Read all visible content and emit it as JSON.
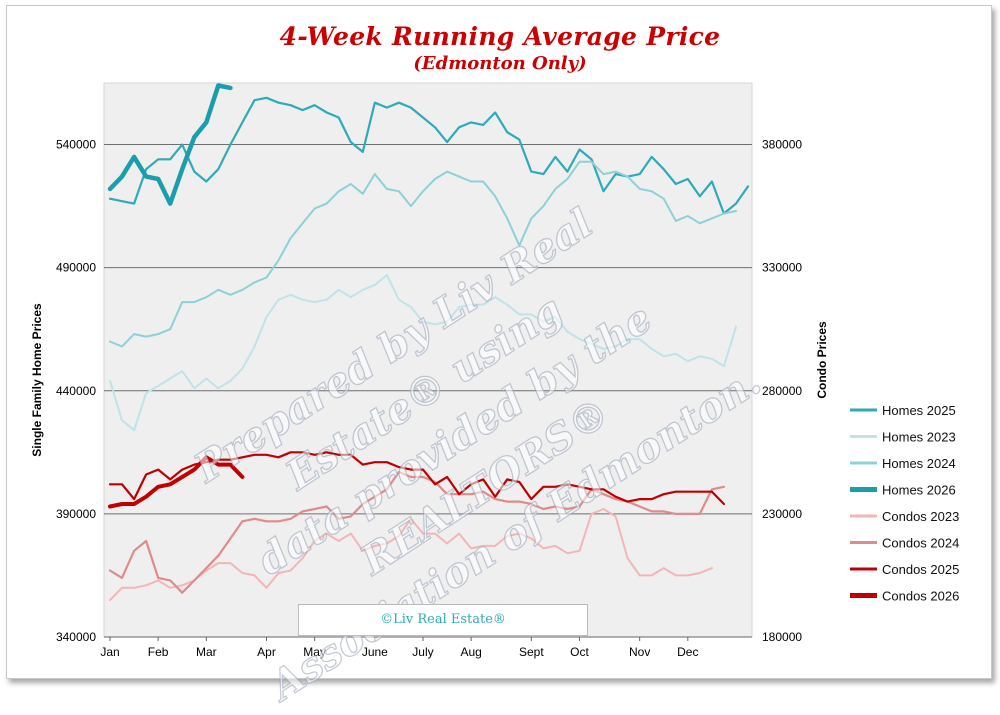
{
  "title": "4-Week Running Average Price",
  "subtitle": "(Edmonton Only)",
  "watermark_lines": [
    "Prepared by Liv Real",
    "Estate® using",
    "data provided by the",
    "REALTORS®",
    "Association of Edmonton."
  ],
  "copyright": "©Liv Real Estate®",
  "colors": {
    "plot_background": "#efefef",
    "homes_2025": "#2eaab8",
    "homes_2023": "#bfe3e8",
    "homes_2024": "#8fd0d8",
    "homes_2026": "#1b9eac",
    "condos_2023": "#f2b6b6",
    "condos_2024": "#df8b8b",
    "condos_2025": "#c00000",
    "condos_2026": "#c00000",
    "title": "#cc0000"
  },
  "chart_data": {
    "type": "line",
    "title": "4-Week Running Average Price",
    "subtitle": "(Edmonton Only)",
    "ylabel_left": "Single Family Home Prices",
    "ylabel_right": "Condo Prices",
    "ylim_left": [
      340000,
      565000
    ],
    "ylim_right": [
      180000,
      405000
    ],
    "yticks_left": [
      "540000",
      "490000",
      "440000",
      "390000",
      "340000"
    ],
    "yticks_right": [
      "380000",
      "330000",
      "280000",
      "230000",
      "180000"
    ],
    "ytick_values_left": [
      540000,
      490000,
      440000,
      390000,
      340000
    ],
    "ytick_values_right": [
      380000,
      330000,
      280000,
      230000,
      180000
    ],
    "x_week_range": [
      0,
      53
    ],
    "months": [
      {
        "label": "Jan",
        "week": 0
      },
      {
        "label": "Feb",
        "week": 4
      },
      {
        "label": "Mar",
        "week": 8
      },
      {
        "label": "Apr",
        "week": 13
      },
      {
        "label": "May",
        "week": 17
      },
      {
        "label": "June",
        "week": 22
      },
      {
        "label": "July",
        "week": 26
      },
      {
        "label": "Aug",
        "week": 30
      },
      {
        "label": "Sept",
        "week": 35
      },
      {
        "label": "Oct",
        "week": 39
      },
      {
        "label": "Nov",
        "week": 44
      },
      {
        "label": "Dec",
        "week": 48
      }
    ],
    "grid": true,
    "legend_position": "right",
    "series": [
      {
        "name": "Homes 2025",
        "axis": "left",
        "color": "#2eaab8",
        "width": 2.2,
        "values": [
          518000,
          517000,
          516000,
          530000,
          534000,
          534000,
          540000,
          529000,
          525000,
          530000,
          540000,
          549000,
          558000,
          559000,
          557000,
          556000,
          554000,
          556000,
          553000,
          551000,
          541000,
          537000,
          557000,
          555000,
          557000,
          555000,
          551000,
          547000,
          541000,
          547000,
          549000,
          548000,
          553000,
          545000,
          542000,
          529000,
          528000,
          535000,
          529000,
          538000,
          534000,
          521000,
          528000,
          527000,
          528000,
          535000,
          530000,
          524000,
          526000,
          519000,
          525000,
          512000,
          516000,
          523000
        ]
      },
      {
        "name": "Homes 2023",
        "axis": "left",
        "color": "#bfe3e8",
        "width": 2.0,
        "values": [
          444000,
          428000,
          424000,
          439000,
          442000,
          445000,
          448000,
          441000,
          445000,
          441000,
          444000,
          449000,
          458000,
          470000,
          477000,
          479000,
          477000,
          476000,
          477000,
          481000,
          478000,
          481000,
          483000,
          487000,
          477000,
          474000,
          468000,
          467000,
          468000,
          474000,
          475000,
          475000,
          478000,
          475000,
          471000,
          471000,
          468000,
          470000,
          464000,
          461000,
          459000,
          457000,
          458000,
          461000,
          461000,
          457000,
          454000,
          455000,
          452000,
          454000,
          453000,
          450000,
          466000
        ]
      },
      {
        "name": "Homes 2024",
        "axis": "left",
        "color": "#8fd0d8",
        "width": 2.0,
        "values": [
          460000,
          458000,
          463000,
          462000,
          463000,
          465000,
          476000,
          476000,
          478000,
          481000,
          479000,
          481000,
          484000,
          486000,
          493000,
          502000,
          508000,
          514000,
          516000,
          521000,
          524000,
          520000,
          528000,
          522000,
          521000,
          515000,
          521000,
          526000,
          529000,
          527000,
          525000,
          525000,
          519000,
          510000,
          499000,
          510000,
          515000,
          522000,
          526000,
          533000,
          533000,
          528000,
          529000,
          527000,
          522000,
          521000,
          518000,
          509000,
          511000,
          508000,
          510000,
          512000,
          513000
        ]
      },
      {
        "name": "Homes 2026",
        "axis": "left",
        "color": "#1b9eac",
        "width": 4.5,
        "values": [
          522000,
          527000,
          535000,
          527000,
          526000,
          516000,
          530000,
          543000,
          549000,
          564000,
          563000
        ]
      },
      {
        "name": "Condos 2023",
        "axis": "right",
        "color": "#f2b6b6",
        "width": 2.0,
        "values": [
          195000,
          200000,
          200000,
          201000,
          203000,
          200000,
          201000,
          203000,
          207000,
          210000,
          210000,
          206000,
          205000,
          200000,
          206000,
          207000,
          212000,
          219000,
          222000,
          219000,
          222000,
          215000,
          217000,
          218000,
          221000,
          228000,
          222000,
          222000,
          218000,
          222000,
          216000,
          217000,
          217000,
          221000,
          222000,
          220000,
          216000,
          217000,
          214000,
          215000,
          230000,
          232000,
          229000,
          212000,
          205000,
          205000,
          208000,
          205000,
          205000,
          206000,
          208000
        ]
      },
      {
        "name": "Condos 2024",
        "axis": "right",
        "color": "#df8b8b",
        "width": 2.2,
        "values": [
          207000,
          204000,
          215000,
          219000,
          204000,
          203000,
          198000,
          203000,
          208000,
          213000,
          220000,
          227000,
          228000,
          227000,
          227000,
          228000,
          231000,
          232000,
          233000,
          228000,
          229000,
          234000,
          237000,
          240000,
          247000,
          245000,
          245000,
          243000,
          238000,
          238000,
          238000,
          239000,
          236000,
          235000,
          235000,
          234000,
          232000,
          233000,
          232000,
          233000,
          240000,
          238000,
          236000,
          235000,
          233000,
          231000,
          231000,
          230000,
          230000,
          230000,
          240000,
          241000
        ]
      },
      {
        "name": "Condos 2025",
        "axis": "right",
        "color": "#c00000",
        "width": 2.2,
        "values": [
          242000,
          242000,
          236000,
          246000,
          248000,
          244000,
          248000,
          250000,
          251000,
          252000,
          252000,
          253000,
          254000,
          254000,
          253000,
          255000,
          255000,
          254000,
          255000,
          254000,
          254000,
          250000,
          251000,
          251000,
          249000,
          248000,
          248000,
          242000,
          245000,
          238000,
          242000,
          244000,
          237000,
          244000,
          243000,
          236000,
          241000,
          241000,
          242000,
          241000,
          240000,
          240000,
          237000,
          235000,
          236000,
          236000,
          238000,
          239000,
          239000,
          239000,
          239000,
          234000
        ]
      },
      {
        "name": "Condos 2026",
        "axis": "right",
        "color": "#c00000",
        "width": 4.0,
        "values": [
          233000,
          234000,
          234000,
          237000,
          241000,
          242000,
          245000,
          248000,
          253000,
          250000,
          250000,
          245000
        ]
      }
    ]
  },
  "legend": [
    {
      "label": "Homes 2025",
      "color": "#2eaab8",
      "width": 3
    },
    {
      "label": "Homes 2023",
      "color": "#bfe3e8",
      "width": 3
    },
    {
      "label": "Homes 2024",
      "color": "#8fd0d8",
      "width": 3
    },
    {
      "label": "Homes 2026",
      "color": "#1b9eac",
      "width": 5
    },
    {
      "label": "Condos 2023",
      "color": "#f2b6b6",
      "width": 3
    },
    {
      "label": "Condos 2024",
      "color": "#df8b8b",
      "width": 3
    },
    {
      "label": "Condos 2025",
      "color": "#c00000",
      "width": 3
    },
    {
      "label": "Condos 2026",
      "color": "#c00000",
      "width": 5
    }
  ]
}
